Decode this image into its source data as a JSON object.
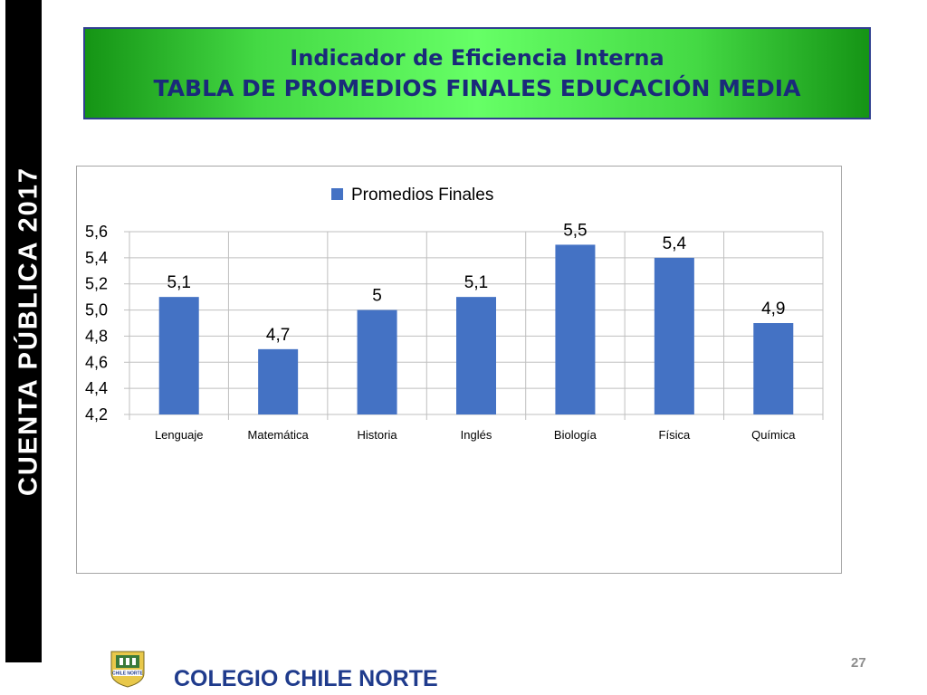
{
  "side_title": "CUENTA  PÚBLICA  2017",
  "header": {
    "line1": "Indicador de Eficiencia Interna",
    "line2": "TABLA DE PROMEDIOS FINALES EDUCACIÓN MEDIA"
  },
  "chart_data": {
    "type": "bar",
    "title": "",
    "xlabel": "",
    "ylabel": "",
    "categories": [
      "Lenguaje",
      "Matemática",
      "Historia",
      "Inglés",
      "Biología",
      "Física",
      "Química"
    ],
    "series": [
      {
        "name": "Promedios Finales",
        "values": [
          5.1,
          4.7,
          5.0,
          5.1,
          5.5,
          5.4,
          4.9
        ],
        "data_labels": [
          "5,1",
          "4,7",
          "5",
          "5,1",
          "5,5",
          "5,4",
          "4,9"
        ],
        "color": "#4472c4"
      }
    ],
    "ylim": [
      4.2,
      5.6
    ],
    "y_ticks": [
      "4,2",
      "4,4",
      "4,6",
      "4,8",
      "5,0",
      "5,2",
      "5,4",
      "5,6"
    ],
    "grid": true,
    "legend_position": "top"
  },
  "footer": {
    "school_name": "COLEGIO CHILE NORTE",
    "logo_text": "CHILE NORTE",
    "page_number": "27"
  }
}
